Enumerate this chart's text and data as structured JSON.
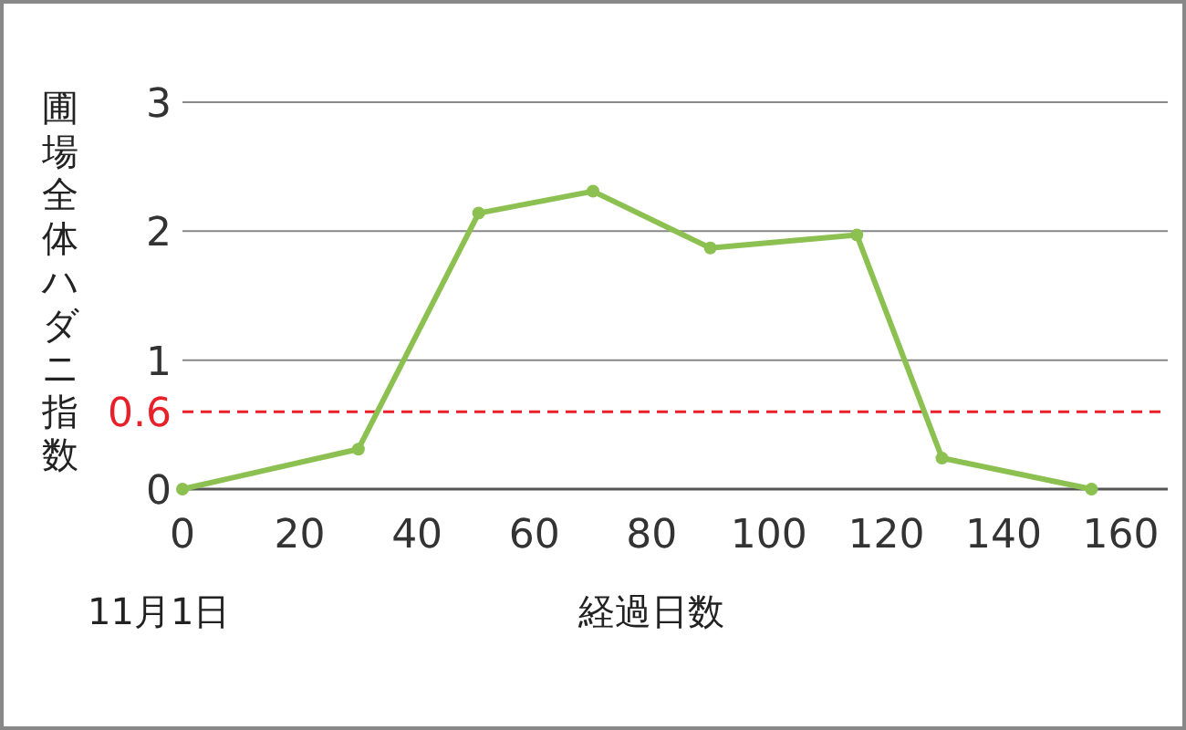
{
  "chart_data": {
    "type": "line",
    "xlabel": "経過日数",
    "ylabel": "圃場全体ハダニ指数",
    "annotations": [
      "11月1日"
    ],
    "x": [
      0,
      30,
      50.5,
      70,
      90,
      115,
      129.5,
      155
    ],
    "series": [
      {
        "color": "#8cc152",
        "values": [
          0,
          0.31,
          2.14,
          2.31,
          1.87,
          1.97,
          0.24,
          0
        ]
      }
    ],
    "xlim": [
      0,
      168
    ],
    "xticks": [
      0,
      20,
      40,
      60,
      80,
      100,
      120,
      140,
      160
    ],
    "ylim": [
      0,
      3
    ],
    "yticks": [
      0,
      1,
      2,
      3
    ],
    "grid": "y",
    "marker": "circle",
    "line_style": "solid",
    "ref_lines": [
      {
        "axis": "y",
        "value": 0.6,
        "label": "0.6",
        "color": "#e8202a",
        "line_style": "dashed"
      }
    ]
  }
}
